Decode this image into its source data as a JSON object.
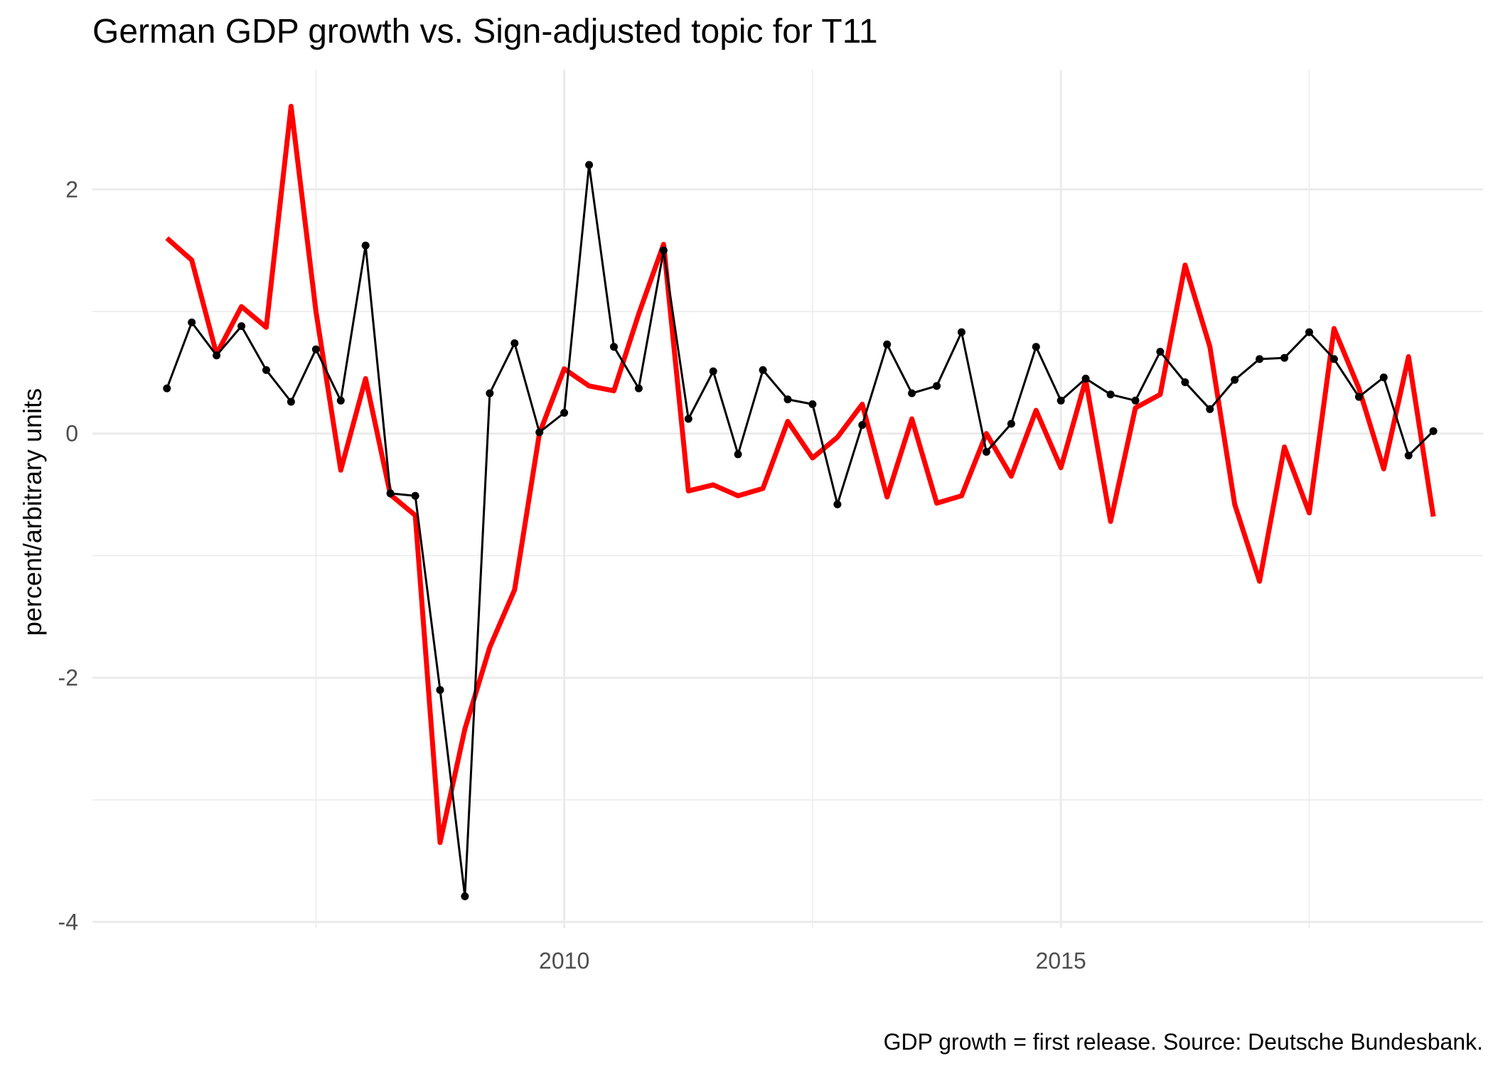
{
  "chart_data": {
    "type": "line",
    "title": "German GDP growth vs. Sign-adjusted topic for T11",
    "xlabel": "",
    "ylabel": "percent/arbitrary units",
    "caption": "GDP growth = first release. Source: Deutsche Bundesbank.",
    "x_ticks": [
      {
        "value": 2010,
        "label": "2010"
      },
      {
        "value": 2015,
        "label": "2015"
      }
    ],
    "y_ticks": [
      {
        "value": 2,
        "label": "2"
      },
      {
        "value": 0,
        "label": "0"
      },
      {
        "value": -2,
        "label": "-2"
      },
      {
        "value": -4,
        "label": "-4"
      }
    ],
    "xlim": [
      2005.25,
      2019.25
    ],
    "ylim": [
      -4.05,
      2.98
    ],
    "grid": true,
    "legend": "none",
    "x": [
      2006.0,
      2006.25,
      2006.5,
      2006.75,
      2007.0,
      2007.25,
      2007.5,
      2007.75,
      2008.0,
      2008.25,
      2008.5,
      2008.75,
      2009.0,
      2009.25,
      2009.5,
      2009.75,
      2010.0,
      2010.25,
      2010.5,
      2010.75,
      2011.0,
      2011.25,
      2011.5,
      2011.75,
      2012.0,
      2012.25,
      2012.5,
      2012.75,
      2013.0,
      2013.25,
      2013.5,
      2013.75,
      2014.0,
      2014.25,
      2014.5,
      2014.75,
      2015.0,
      2015.25,
      2015.5,
      2015.75,
      2016.0,
      2016.25,
      2016.5,
      2016.75,
      2017.0,
      2017.25,
      2017.5,
      2017.75,
      2018.0,
      2018.25,
      2018.5,
      2018.75
    ],
    "series": [
      {
        "color": "#ff0000",
        "line_style": "thick",
        "values": [
          1.6,
          1.42,
          0.65,
          1.04,
          0.87,
          2.68,
          1.0,
          -0.3,
          0.45,
          -0.5,
          -0.67,
          -3.35,
          -2.42,
          -1.75,
          -1.28,
          0.0,
          0.53,
          0.39,
          0.35,
          0.98,
          1.55,
          -0.47,
          -0.42,
          -0.51,
          -0.45,
          0.1,
          -0.2,
          -0.03,
          0.24,
          -0.52,
          0.12,
          -0.57,
          -0.51,
          0.0,
          -0.35,
          0.19,
          -0.28,
          0.44,
          -0.72,
          0.21,
          0.32,
          1.38,
          0.71,
          -0.58,
          -1.21,
          -0.11,
          -0.65,
          0.86,
          0.37,
          -0.29,
          0.63,
          -0.68
        ]
      },
      {
        "color": "#000000",
        "line_style": "thin-with-points",
        "values": [
          0.37,
          0.91,
          0.64,
          0.88,
          0.52,
          0.26,
          0.69,
          0.27,
          1.54,
          -0.49,
          -0.51,
          -2.1,
          -3.79,
          0.33,
          0.74,
          0.01,
          0.17,
          2.2,
          0.71,
          0.37,
          1.5,
          0.12,
          0.51,
          -0.17,
          0.52,
          0.28,
          0.24,
          -0.58,
          0.07,
          0.73,
          0.33,
          0.39,
          0.83,
          -0.15,
          0.08,
          0.71,
          0.27,
          0.45,
          0.32,
          0.27,
          0.67,
          0.42,
          0.2,
          0.44,
          0.61,
          0.62,
          0.83,
          0.61,
          0.3,
          0.46,
          -0.18,
          0.02
        ]
      }
    ]
  }
}
